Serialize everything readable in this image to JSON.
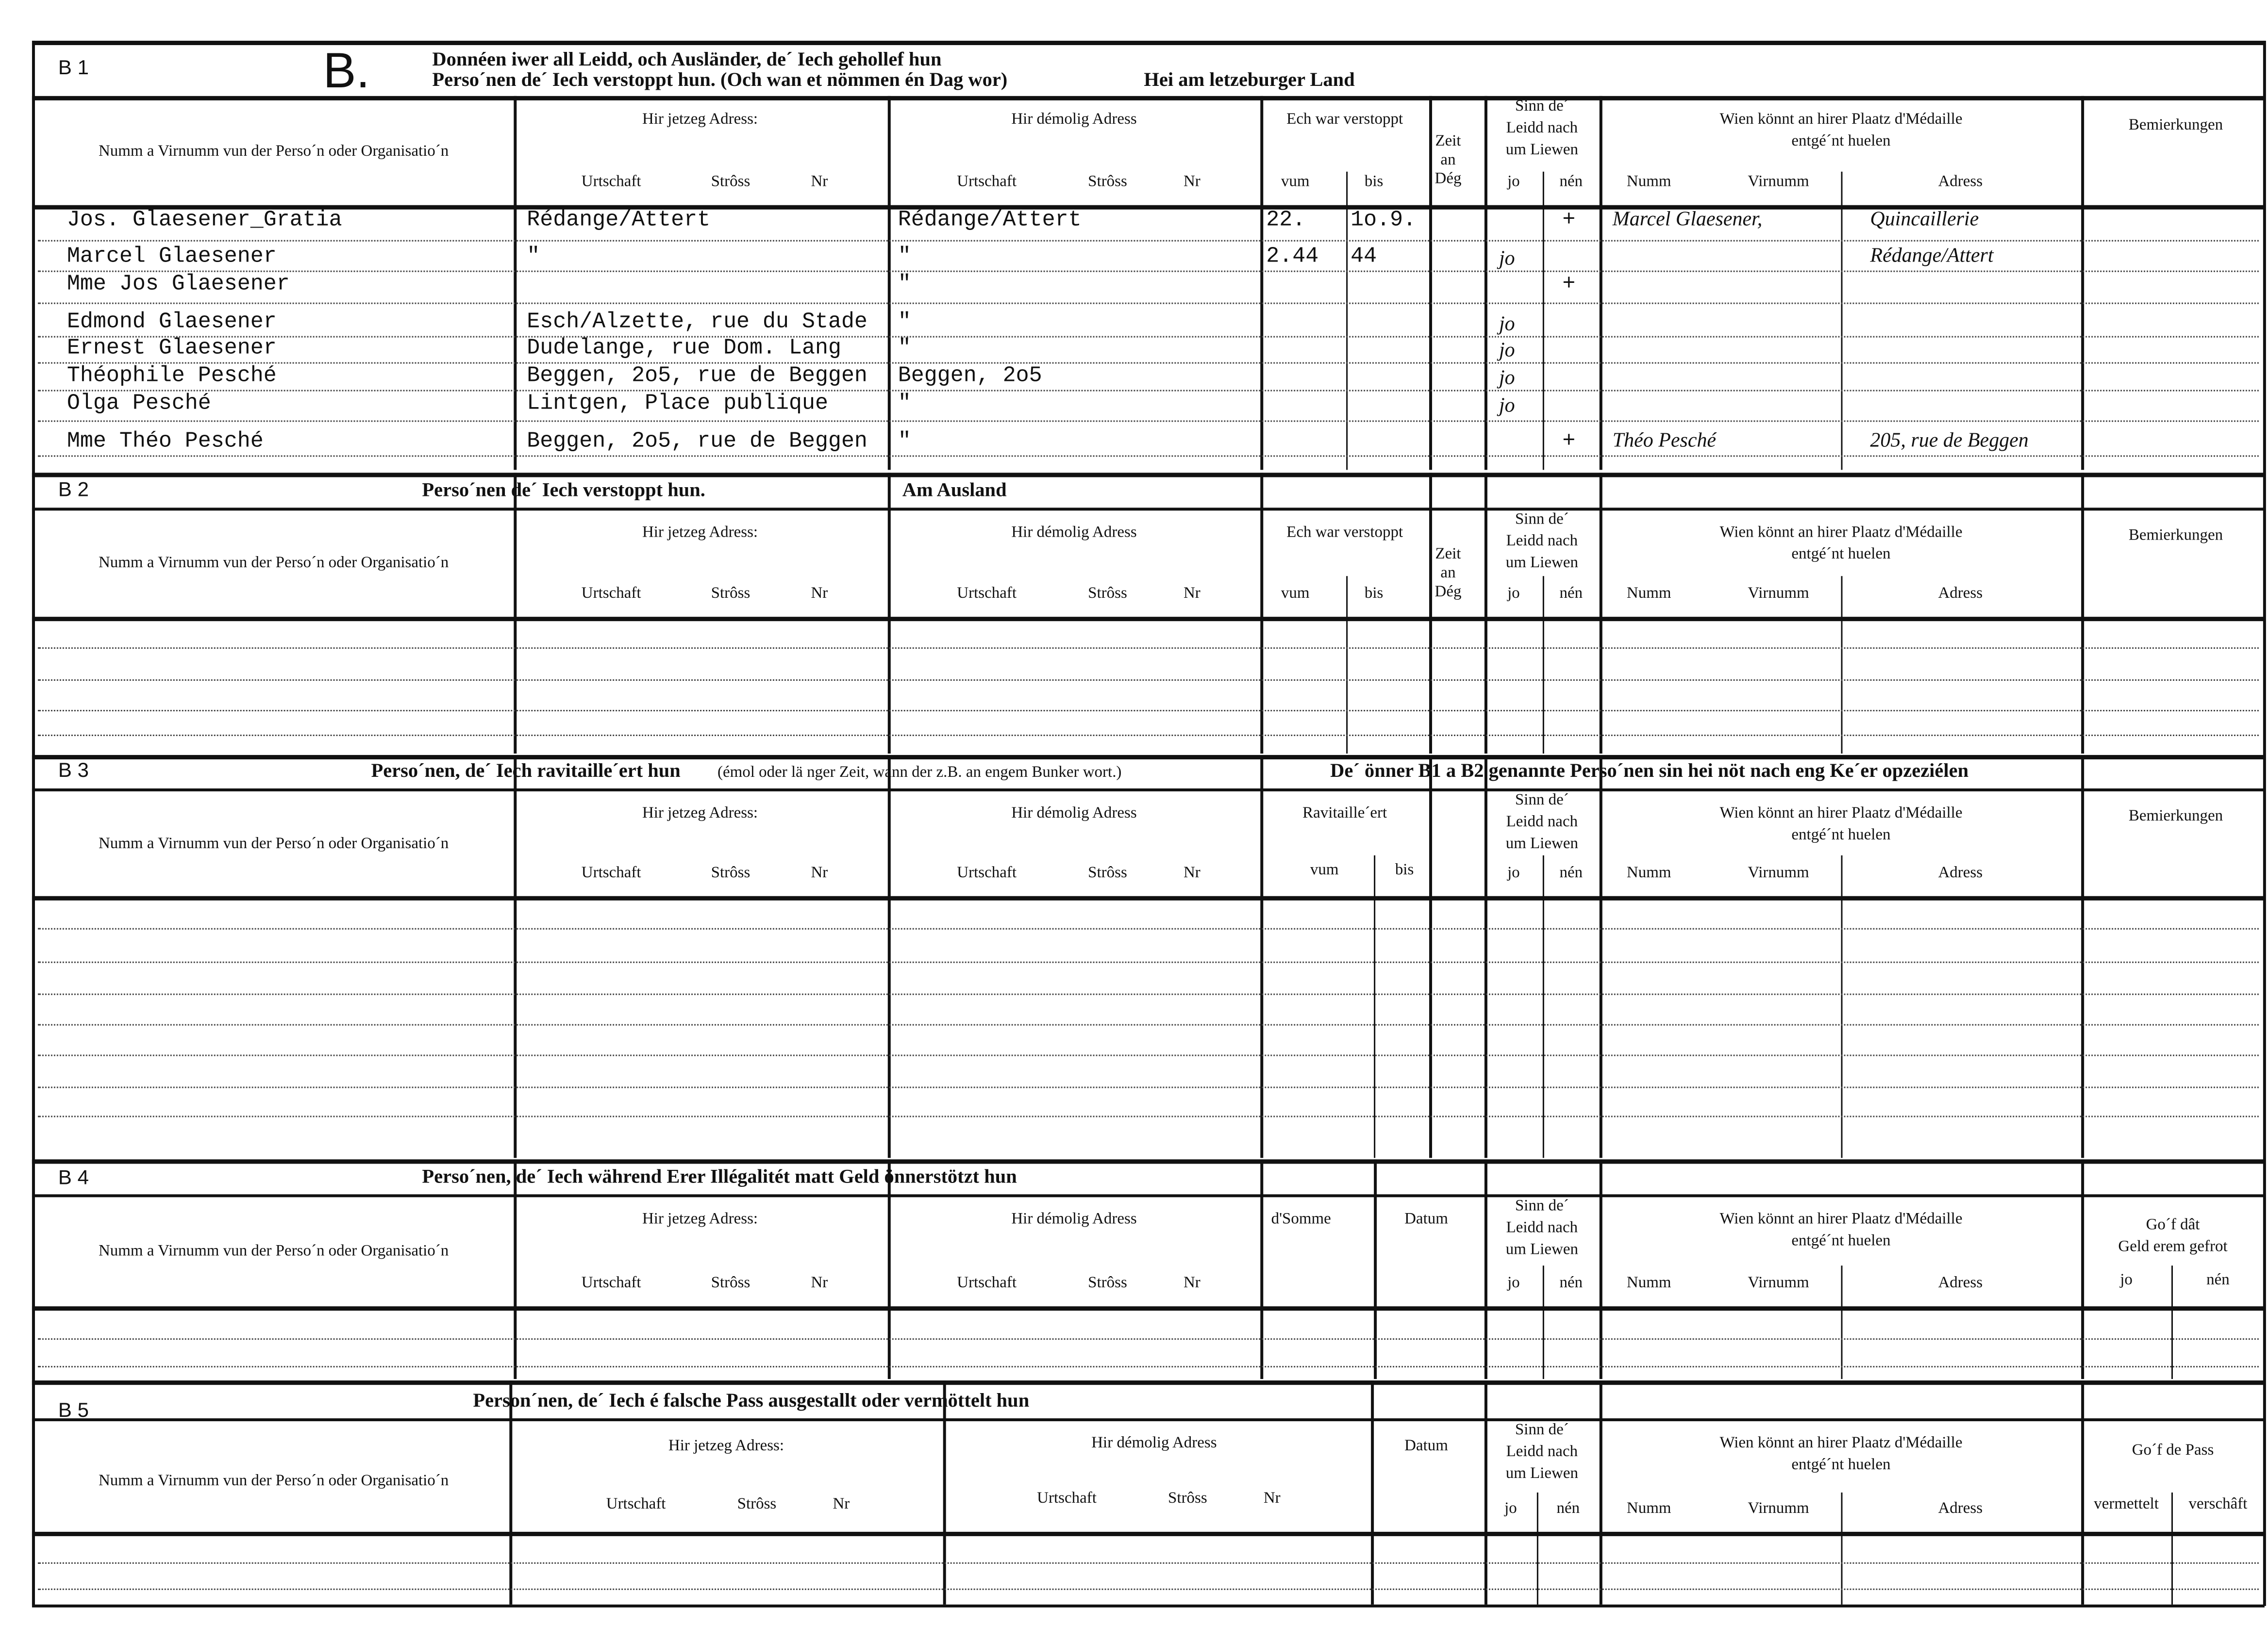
{
  "common": {
    "name_col": "Numm a Virnumm vun der Perso´n oder Organisatio´n",
    "current_address": "Hir jetzeg Adress:",
    "former_address": "Hir démolig Adress",
    "urtschaft": "Urtschaft",
    "stross": "Strôss",
    "nr": "Nr",
    "hidden": "Ech war verstoppt",
    "vum": "vum",
    "bis": "bis",
    "days": [
      "Zeit",
      "an",
      "Dég"
    ],
    "alive": [
      "Sinn de´",
      "Leidd nach",
      "um Liewen"
    ],
    "jo": "jo",
    "nen": "nén",
    "medal": [
      "Wien könnt an hirer Plaatz d'Médaille",
      "entgé´nt huelen"
    ],
    "numm": "Numm",
    "virnumm": "Virnumm",
    "adress": "Adress",
    "remarks": "Bemierkungen"
  },
  "b1": {
    "label": "B 1",
    "letter": "B.",
    "title1": "Donnéen iwer all Leidd, och Ausländer, de´ Iech gehollef hun",
    "title2": "Perso´nen de´ Iech verstoppt hun. (Och wan et nömmen én Dag wor)",
    "title3": "Hei am letzeburger Land",
    "rows": [
      {
        "name": "Jos. Glaesener_Gratia",
        "current": "Rédange/Attert",
        "former": "Rédange/Attert",
        "vum": "22.",
        "bis": "1o.9.",
        "jo": "",
        "nen": "+",
        "medal_name": "Marcel Glaesener,",
        "medal_address": "Quincaillerie"
      },
      {
        "name": "Marcel Glaesener",
        "current": "\"",
        "former": "\"",
        "vum": "2.44",
        "bis": "44",
        "jo": "jo",
        "nen": "",
        "medal_name": "",
        "medal_address": "Rédange/Attert"
      },
      {
        "name": "Mme Jos Glaesener",
        "current": "",
        "former": "\"",
        "vum": "",
        "bis": "",
        "jo": "",
        "nen": "+",
        "medal_name": "",
        "medal_address": ""
      },
      {
        "name": "Edmond Glaesener",
        "current": "Esch/Alzette, rue du Stade",
        "former": "\"",
        "vum": "",
        "bis": "",
        "jo": "jo",
        "nen": "",
        "medal_name": "",
        "medal_address": ""
      },
      {
        "name": "Ernest Glaesener",
        "current": "Dudelange, rue Dom. Lang",
        "former": "\"",
        "vum": "",
        "bis": "",
        "jo": "jo",
        "nen": "",
        "medal_name": "",
        "medal_address": ""
      },
      {
        "name": "Théophile Pesché",
        "current": "Beggen, 2o5, rue de Beggen",
        "former": "Beggen, 2o5",
        "vum": "",
        "bis": "",
        "jo": "jo",
        "nen": "",
        "medal_name": "",
        "medal_address": ""
      },
      {
        "name": "Olga Pesché",
        "current": "Lintgen, Place publique",
        "former": "\"",
        "vum": "",
        "bis": "",
        "jo": "jo",
        "nen": "",
        "medal_name": "",
        "medal_address": ""
      },
      {
        "name": "Mme Théo Pesché",
        "current": "Beggen, 2o5, rue de Beggen",
        "former": "\"",
        "vum": "",
        "bis": "",
        "jo": "",
        "nen": "+",
        "medal_name": "Théo Pesché",
        "medal_address": "205, rue de Beggen"
      }
    ]
  },
  "b2": {
    "label": "B 2",
    "title": "Perso´nen de´ Iech verstoppt hun.",
    "title2": "Am Ausland"
  },
  "b3": {
    "label": "B 3",
    "title": "Perso´nen, de´ Iech ravitaille´ert hun",
    "title_note": "(émol oder lä nger Zeit, wann der z.B. an engem Bunker wort.)",
    "title2": "De´ önner B1 a B2 genannte Perso´nen sin hei nöt nach eng Ke´er opzeziélen",
    "supplied": "Ravitaille´ert"
  },
  "b4": {
    "label": "B 4",
    "title": "Perso´nen, de´ Iech während Erer Illégalitét matt Geld önnerstötzt hun",
    "sum": "d'Somme",
    "date": "Datum",
    "refund": [
      "Go´f dât",
      "Geld erem gefrot"
    ]
  },
  "b5": {
    "label": "B 5",
    "title": "Person´nen, de´ Iech é falsche Pass ausgestallt oder vermöttelt hun",
    "date": "Datum",
    "pass": "Go´f de Pass",
    "arranged": "vermettelt",
    "procured": "verschâft"
  }
}
